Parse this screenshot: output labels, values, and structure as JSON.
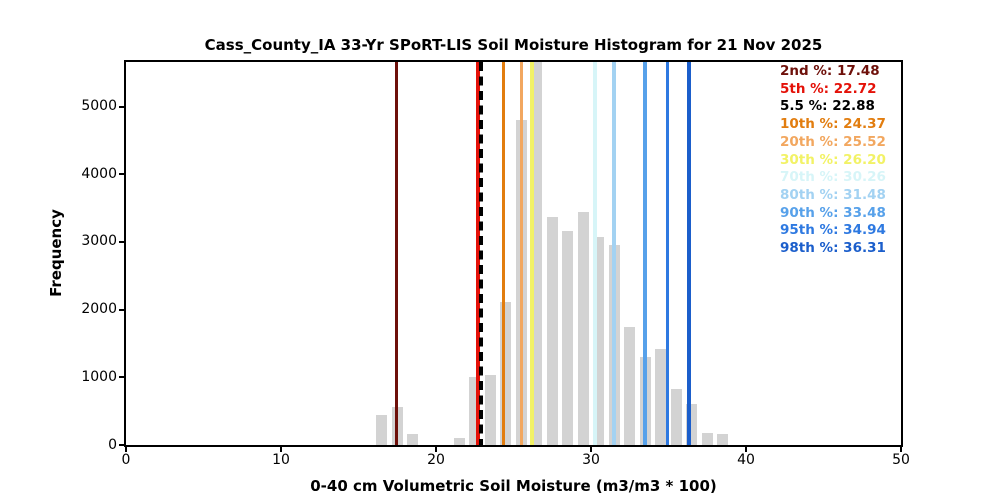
{
  "chart_data": {
    "type": "bar",
    "title": "Cass_County_IA 33-Yr SPoRT-LIS Soil Moisture Histogram for 21 Nov 2025",
    "xlabel": "0-40 cm Volumetric Soil Moisture (m3/m3 * 100)",
    "ylabel": "Frequency",
    "xlim": [
      0,
      50
    ],
    "ylim": [
      0,
      5660
    ],
    "xticks": [
      0,
      10,
      20,
      30,
      40,
      50
    ],
    "yticks": [
      0,
      1000,
      2000,
      3000,
      4000,
      5000
    ],
    "grid": false,
    "legend_position": "upper right",
    "bar_color": "#d3d3d3",
    "bin_width": 1,
    "bar_rel_width": 0.74,
    "bars": [
      {
        "x": 16.5,
        "freq": 440
      },
      {
        "x": 17.5,
        "freq": 560
      },
      {
        "x": 18.5,
        "freq": 170
      },
      {
        "x": 21.5,
        "freq": 100
      },
      {
        "x": 22.5,
        "freq": 1010
      },
      {
        "x": 23.5,
        "freq": 1030
      },
      {
        "x": 24.5,
        "freq": 2120
      },
      {
        "x": 25.5,
        "freq": 4800
      },
      {
        "x": 26.5,
        "freq": 5660
      },
      {
        "x": 27.5,
        "freq": 3370
      },
      {
        "x": 28.5,
        "freq": 3170
      },
      {
        "x": 29.5,
        "freq": 3450
      },
      {
        "x": 30.5,
        "freq": 3080
      },
      {
        "x": 31.5,
        "freq": 2960
      },
      {
        "x": 32.5,
        "freq": 1740
      },
      {
        "x": 33.5,
        "freq": 1300
      },
      {
        "x": 34.5,
        "freq": 1420
      },
      {
        "x": 35.5,
        "freq": 830
      },
      {
        "x": 36.5,
        "freq": 610
      },
      {
        "x": 37.5,
        "freq": 180
      },
      {
        "x": 38.5,
        "freq": 160
      }
    ],
    "percentile_lines": [
      {
        "label": "2nd %",
        "value": 17.48,
        "color": "#6e100a",
        "style": "solid",
        "width": 3
      },
      {
        "label": "5th %",
        "value": 22.72,
        "color": "#e41108",
        "style": "solid",
        "width": 3.5
      },
      {
        "label": "5.5 %",
        "value": 22.88,
        "color": "#000000",
        "style": "dashed",
        "width": 4
      },
      {
        "label": "10th %",
        "value": 24.37,
        "color": "#e27d0f",
        "style": "solid",
        "width": 3.5
      },
      {
        "label": "20th %",
        "value": 25.52,
        "color": "#f2a75f",
        "style": "solid",
        "width": 3.5
      },
      {
        "label": "30th %",
        "value": 26.2,
        "color": "#f2f266",
        "style": "solid",
        "width": 3.5
      },
      {
        "label": "70th %",
        "value": 30.26,
        "color": "#d7f5f8",
        "style": "solid",
        "width": 3.5
      },
      {
        "label": "80th %",
        "value": 31.48,
        "color": "#a3d2f2",
        "style": "solid",
        "width": 3.5
      },
      {
        "label": "90th %",
        "value": 33.48,
        "color": "#57a1ea",
        "style": "solid",
        "width": 3.5
      },
      {
        "label": "95th %",
        "value": 34.94,
        "color": "#2e79e1",
        "style": "solid",
        "width": 3.5
      },
      {
        "label": "98th %",
        "value": 36.31,
        "color": "#1b5ecb",
        "style": "solid",
        "width": 4
      }
    ]
  }
}
